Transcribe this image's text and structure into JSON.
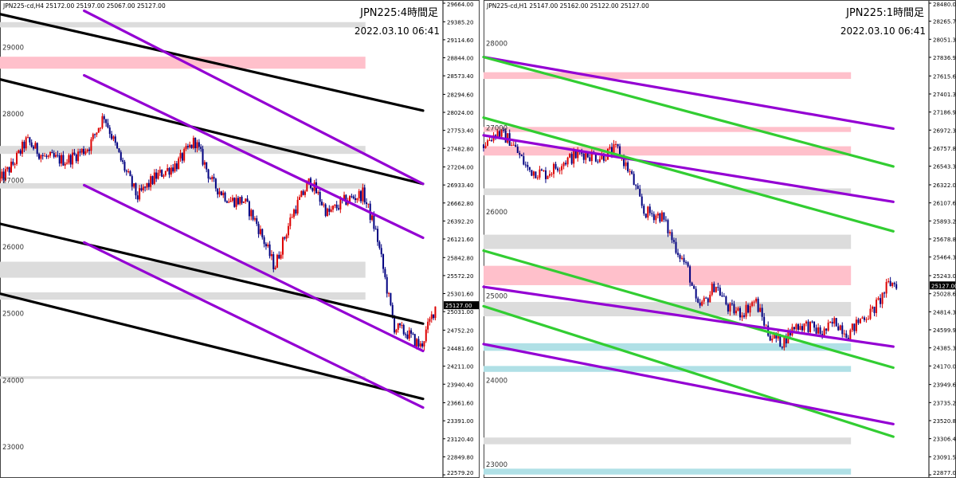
{
  "chart_data": [
    {
      "type": "candlestick",
      "header": "JPN225-cd,H4  25172.00 25197.00 25067.00 25127.00",
      "title": "JPN225:4時間足",
      "datetime": "2022.03.10 06:41",
      "ylim": [
        22579.2,
        29664.0
      ],
      "right_ticks": [
        "29664.00",
        "29385.20",
        "29114.60",
        "28844.00",
        "28573.40",
        "28294.60",
        "28024.00",
        "27753.40",
        "27482.80",
        "27204.00",
        "26933.40",
        "26662.80",
        "26392.20",
        "26121.60",
        "25842.80",
        "25572.20",
        "25301.60",
        "25031.00",
        "24752.20",
        "24481.60",
        "24211.00",
        "23940.40",
        "23661.60",
        "23391.00",
        "23120.40",
        "22849.80",
        "22579.20"
      ],
      "left_ticks": [
        "29000",
        "28000",
        "27000",
        "26000",
        "25000",
        "24000",
        "23000"
      ],
      "price_label": "25127.00",
      "price": 25127.0,
      "colors": {
        "up": "#dd0000",
        "down": "#000080",
        "trend": "#000000",
        "channel": "#9400d3",
        "pink_zone": "#ffc0cb",
        "gray_zone": "#dcdcdc"
      },
      "zones": [
        {
          "color": "gray",
          "from": 29380,
          "to": 29300
        },
        {
          "color": "pink",
          "from": 28860,
          "to": 28680
        },
        {
          "color": "gray",
          "from": 27520,
          "to": 27400
        },
        {
          "color": "gray",
          "from": 26960,
          "to": 26880
        },
        {
          "color": "gray",
          "from": 25780,
          "to": 25540
        },
        {
          "color": "gray",
          "from": 25320,
          "to": 25210
        },
        {
          "color": "gray",
          "from": 24060,
          "to": 24020
        }
      ],
      "lines": [
        {
          "color": "trend",
          "x": [
            0.0,
            0.955
          ],
          "y": [
            29500,
            28050
          ]
        },
        {
          "color": "trend",
          "x": [
            0.0,
            0.955
          ],
          "y": [
            28520,
            26950
          ]
        },
        {
          "color": "trend",
          "x": [
            0.0,
            0.955
          ],
          "y": [
            26350,
            24850
          ]
        },
        {
          "color": "trend",
          "x": [
            0.0,
            0.955
          ],
          "y": [
            25300,
            23720
          ]
        },
        {
          "color": "channel",
          "x": [
            0.19,
            0.955
          ],
          "y": [
            29550,
            26950
          ]
        },
        {
          "color": "channel",
          "x": [
            0.19,
            0.955
          ],
          "y": [
            28580,
            26140
          ]
        },
        {
          "color": "channel",
          "x": [
            0.19,
            0.955
          ],
          "y": [
            26930,
            24440
          ]
        },
        {
          "color": "channel",
          "x": [
            0.19,
            0.955
          ],
          "y": [
            26070,
            23590
          ]
        }
      ],
      "path": [
        [
          0.0,
          27000
        ],
        [
          0.03,
          27250
        ],
        [
          0.06,
          27600
        ],
        [
          0.1,
          27350
        ],
        [
          0.15,
          27300
        ],
        [
          0.2,
          27500
        ],
        [
          0.235,
          27980
        ],
        [
          0.27,
          27350
        ],
        [
          0.31,
          26750
        ],
        [
          0.35,
          27050
        ],
        [
          0.4,
          27250
        ],
        [
          0.44,
          27600
        ],
        [
          0.48,
          26950
        ],
        [
          0.52,
          26700
        ],
        [
          0.55,
          26700
        ],
        [
          0.58,
          26350
        ],
        [
          0.62,
          25700
        ],
        [
          0.66,
          26500
        ],
        [
          0.7,
          27000
        ],
        [
          0.74,
          26500
        ],
        [
          0.78,
          26700
        ],
        [
          0.82,
          26800
        ],
        [
          0.85,
          26200
        ],
        [
          0.87,
          25500
        ],
        [
          0.89,
          24800
        ],
        [
          0.92,
          24700
        ],
        [
          0.95,
          24500
        ],
        [
          0.985,
          25150
        ]
      ]
    },
    {
      "type": "candlestick",
      "header": "JPN225-cd,H1  25147.00 25162.00 25122.00 25127.00",
      "title": "JPN225:1時間足",
      "datetime": "2022.03.10 06:41",
      "ylim": [
        22877.0,
        28480.0
      ],
      "right_ticks": [
        "28480.00",
        "28265.70",
        "28051.30",
        "27836.90",
        "27615.60",
        "27401.30",
        "27186.90",
        "26972.30",
        "26757.80",
        "26543.30",
        "26322.00",
        "26107.60",
        "25893.20",
        "25678.80",
        "25464.30",
        "25243.00",
        "25028.60",
        "24814.30",
        "24599.90",
        "24385.30",
        "24170.00",
        "23949.60",
        "23735.20",
        "23520.80",
        "23306.40",
        "23091.50",
        "22877.00"
      ],
      "left_ticks": [
        "28000",
        "27000",
        "26000",
        "25000",
        "24000",
        "23000"
      ],
      "price_label": "25127.00",
      "price": 25127.0,
      "colors": {
        "up": "#dd0000",
        "down": "#000080",
        "purple": "#9400d3",
        "green": "#32cd32",
        "pink_zone": "#ffc0cb",
        "gray_zone": "#dcdcdc",
        "cyan_zone": "#b0e0e6"
      },
      "zones": [
        {
          "color": "pink",
          "from": 27660,
          "to": 27580
        },
        {
          "color": "pink",
          "from": 27010,
          "to": 26950
        },
        {
          "color": "pink",
          "from": 26780,
          "to": 26670
        },
        {
          "color": "gray",
          "from": 26280,
          "to": 26200
        },
        {
          "color": "gray",
          "from": 25730,
          "to": 25560
        },
        {
          "color": "pink",
          "from": 25360,
          "to": 25130
        },
        {
          "color": "gray",
          "from": 24930,
          "to": 24760
        },
        {
          "color": "cyan",
          "from": 24440,
          "to": 24350
        },
        {
          "color": "cyan",
          "from": 24170,
          "to": 24100
        },
        {
          "color": "gray",
          "from": 23320,
          "to": 23240
        },
        {
          "color": "cyan",
          "from": 22950,
          "to": 22880
        }
      ],
      "lines": [
        {
          "color": "purple",
          "x": [
            0.0,
            0.92
          ],
          "y": [
            27840,
            26990
          ]
        },
        {
          "color": "green",
          "x": [
            0.0,
            0.92
          ],
          "y": [
            27840,
            26540
          ]
        },
        {
          "color": "purple",
          "x": [
            0.0,
            0.92
          ],
          "y": [
            26910,
            26120
          ]
        },
        {
          "color": "green",
          "x": [
            0.0,
            0.92
          ],
          "y": [
            27120,
            25770
          ]
        },
        {
          "color": "green",
          "x": [
            0.0,
            0.92
          ],
          "y": [
            25540,
            24150
          ]
        },
        {
          "color": "purple",
          "x": [
            0.0,
            0.92
          ],
          "y": [
            25110,
            24400
          ]
        },
        {
          "color": "green",
          "x": [
            0.0,
            0.92
          ],
          "y": [
            24880,
            23330
          ]
        },
        {
          "color": "purple",
          "x": [
            0.0,
            0.92
          ],
          "y": [
            24430,
            23480
          ]
        }
      ],
      "path": [
        [
          0.0,
          26800
        ],
        [
          0.03,
          26950
        ],
        [
          0.06,
          26850
        ],
        [
          0.1,
          26500
        ],
        [
          0.14,
          26450
        ],
        [
          0.18,
          26600
        ],
        [
          0.22,
          26700
        ],
        [
          0.26,
          26650
        ],
        [
          0.3,
          26750
        ],
        [
          0.33,
          26450
        ],
        [
          0.36,
          26000
        ],
        [
          0.4,
          25950
        ],
        [
          0.43,
          25600
        ],
        [
          0.46,
          25300
        ],
        [
          0.48,
          24850
        ],
        [
          0.5,
          24950
        ],
        [
          0.52,
          25150
        ],
        [
          0.55,
          24850
        ],
        [
          0.58,
          24800
        ],
        [
          0.61,
          24950
        ],
        [
          0.64,
          24550
        ],
        [
          0.67,
          24450
        ],
        [
          0.7,
          24650
        ],
        [
          0.73,
          24650
        ],
        [
          0.76,
          24550
        ],
        [
          0.79,
          24700
        ],
        [
          0.82,
          24550
        ],
        [
          0.85,
          24750
        ],
        [
          0.87,
          24800
        ],
        [
          0.89,
          24950
        ],
        [
          0.91,
          25150
        ],
        [
          0.93,
          25150
        ]
      ]
    }
  ]
}
